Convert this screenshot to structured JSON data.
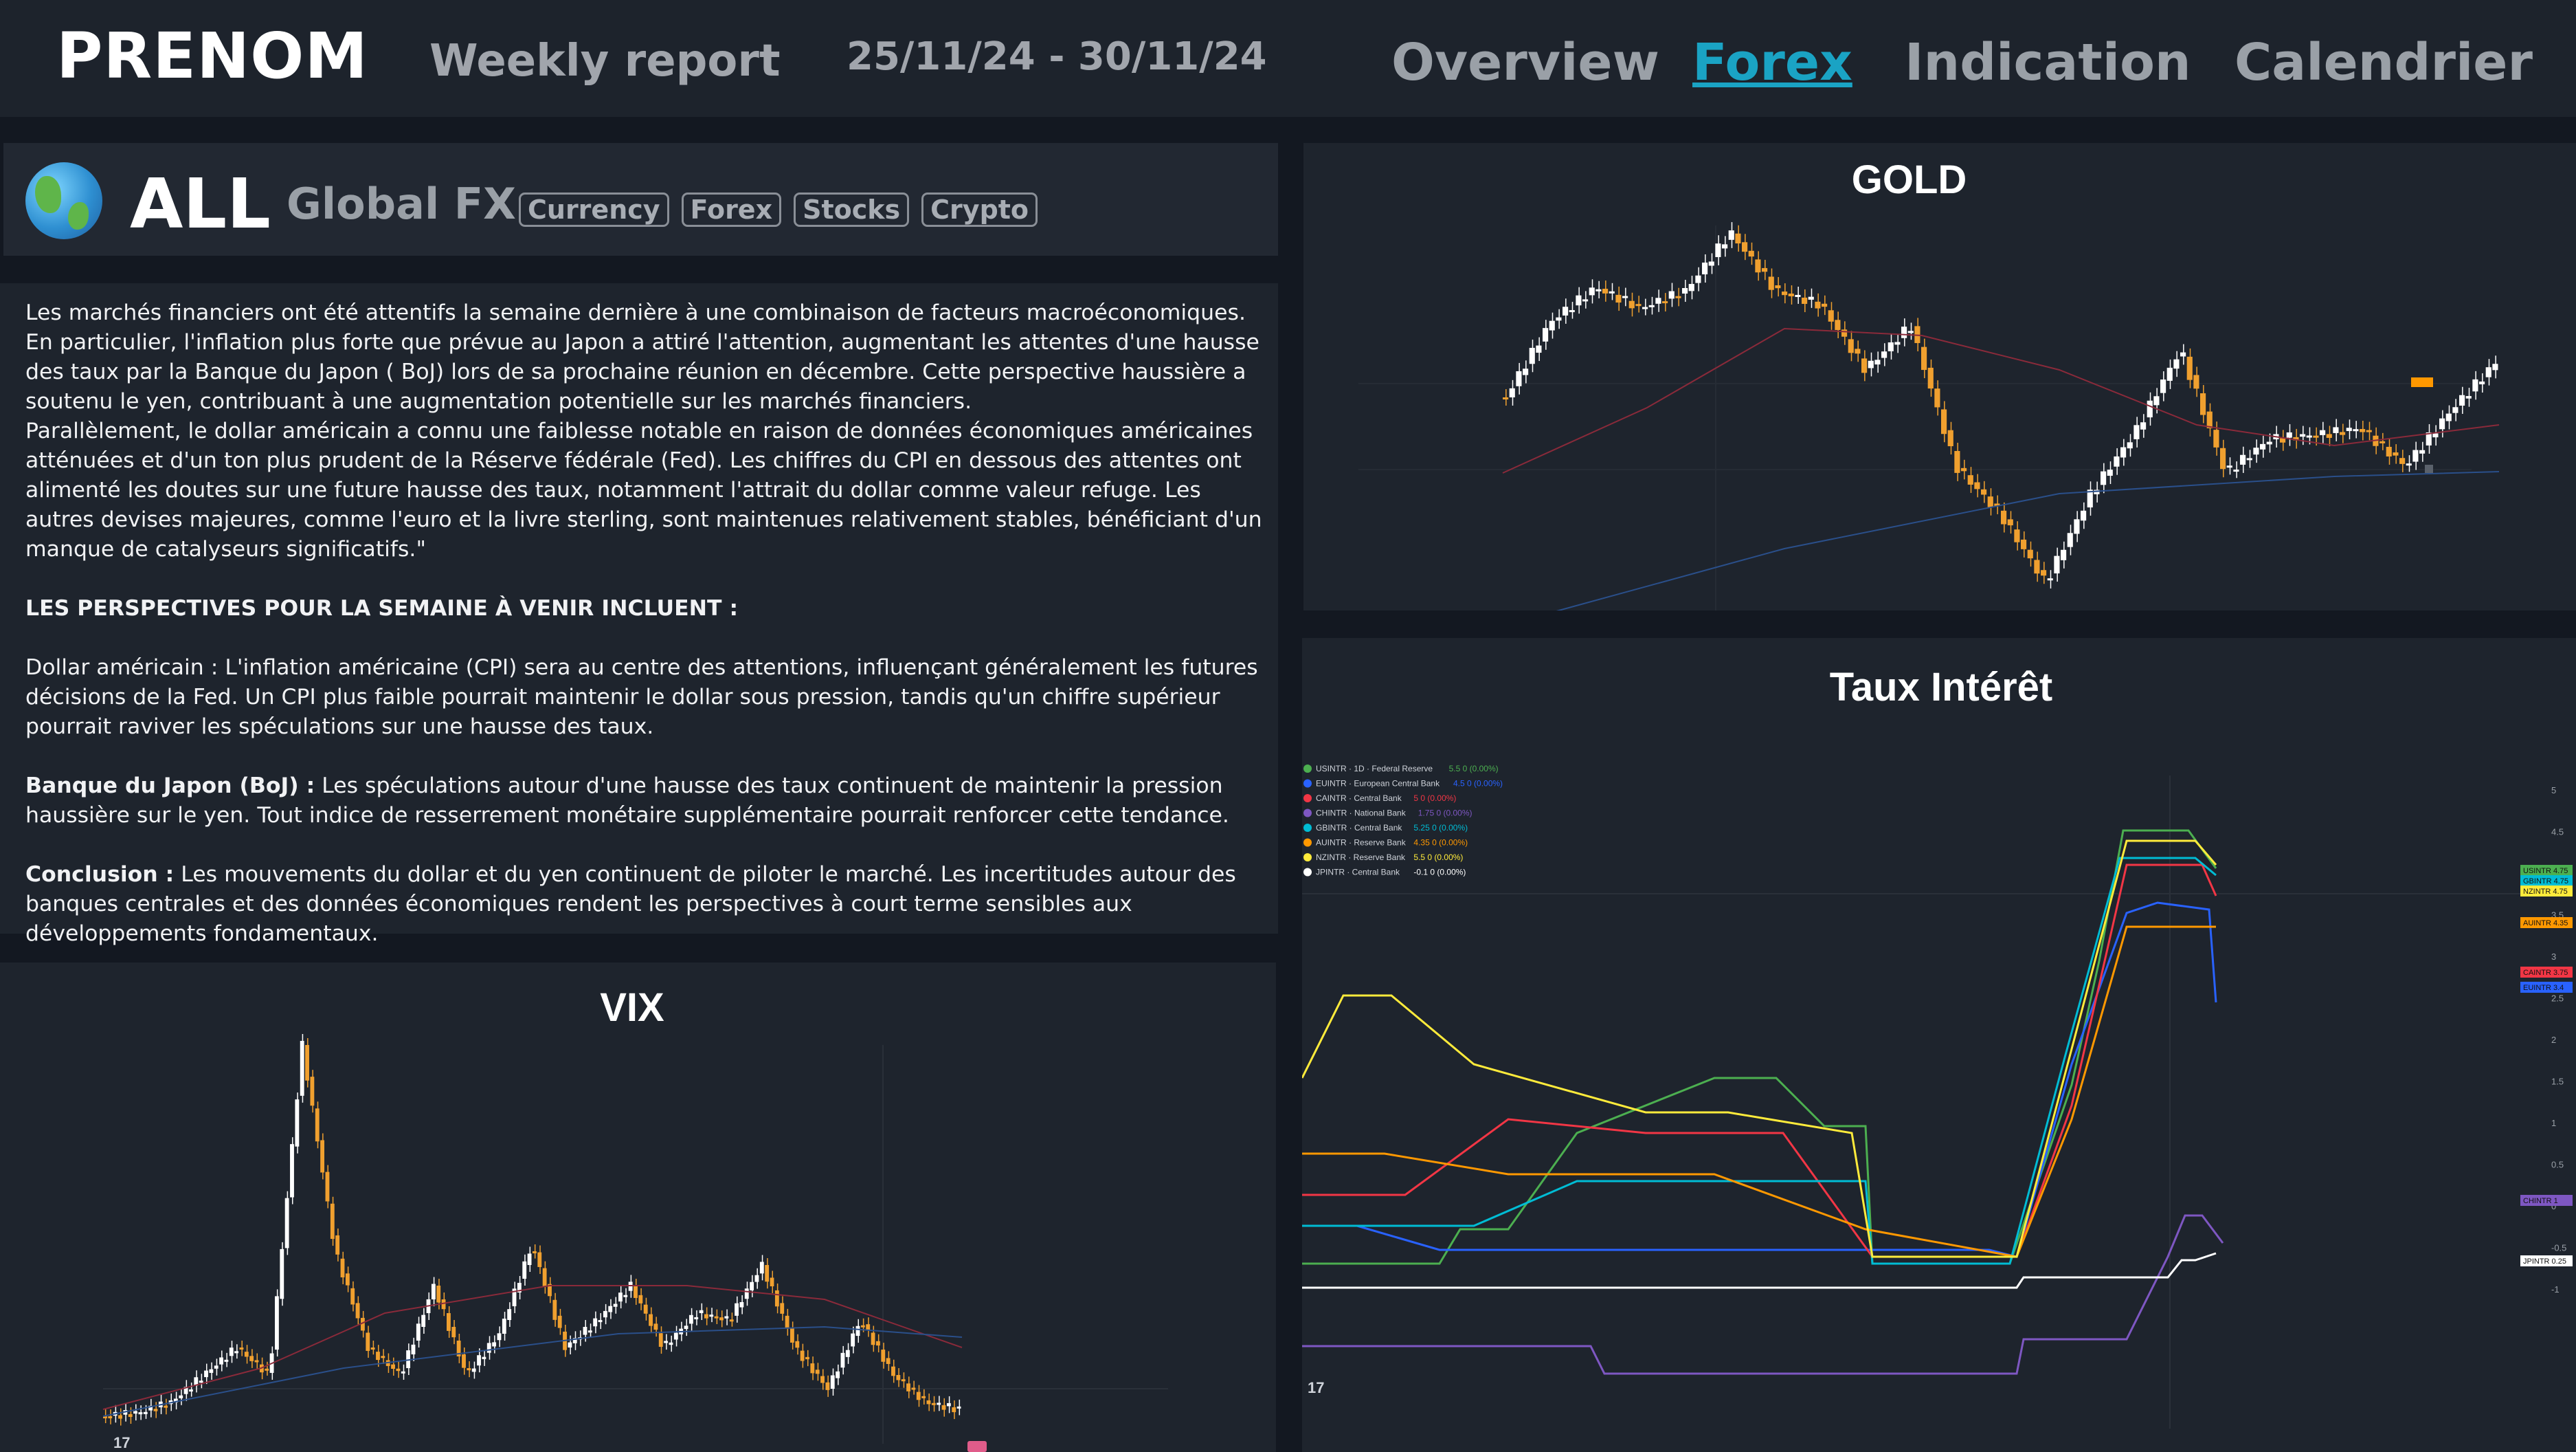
{
  "header": {
    "brand": "PRENOM",
    "subtitle": "Weekly report",
    "date_range": "25/11/24 - 30/11/24",
    "nav": [
      "Overview",
      "Forex",
      "Indication",
      "Calendrier"
    ],
    "active_nav": "Forex"
  },
  "asset": {
    "icon": "globe-icon",
    "name": "ALL",
    "category": "Global FX",
    "tags": [
      "Currency",
      "Forex",
      "Stocks",
      "Crypto"
    ]
  },
  "report": {
    "p1": "Les marchés financiers ont été attentifs la semaine dernière à une combinaison de facteurs macroéconomiques. En particulier, l'inflation plus forte que prévue au Japon a attiré l'attention, augmentant les attentes d'une hausse des taux par la Banque du Japon ( BoJ) lors de sa prochaine réunion en décembre. Cette perspective haussière a soutenu le yen, contribuant à une augmentation potentielle sur les marchés financiers.",
    "p2": "Parallèlement, le dollar américain a connu une faiblesse notable en raison de données économiques américaines atténuées et d'un ton plus prudent de la Réserve fédérale (Fed). Les chiffres du CPI en dessous des attentes ont alimenté les doutes sur une future hausse des taux, notamment l'attrait du dollar comme valeur refuge. Les autres devises majeures, comme l'euro et la livre sterling, sont maintenues relativement stables, bénéficiant d'un manque de catalyseurs significatifs.\"",
    "outlook_heading": "LES PERSPECTIVES POUR LA SEMAINE À VENIR INCLUENT :",
    "usd": "Dollar américain : L'inflation américaine (CPI) sera au centre des attentions, influençant généralement les futures décisions de la Fed. Un CPI plus faible pourrait maintenir le dollar sous pression, tandis qu'un chiffre supérieur pourrait raviver les spéculations sur une hausse des taux.",
    "boj_label": "Banque du Japon (BoJ) :",
    "boj_text": " Les spéculations autour d'une hausse des taux continuent de maintenir la pression haussière sur le yen. Tout indice de resserrement monétaire supplémentaire pourrait renforcer cette tendance.",
    "conclusion_label": "Conclusion :",
    "conclusion_text": " Les mouvements du dollar et du yen continuent de piloter le marché. Les incertitudes autour des banques centrales et des données économiques rendent les perspectives à court terme sensibles aux développements fondamentaux."
  },
  "charts": {
    "gold_title": "GOLD",
    "vix_title": "VIX",
    "rates_title": "Taux Intérêt"
  },
  "rates_legend": [
    {
      "label": "USINTR · 1D · Federal Reserve",
      "value": "5.5  0 (0.00%)",
      "color": "#4caf50"
    },
    {
      "label": "EUINTR · European Central Bank",
      "value": "4.5  0 (0.00%)",
      "color": "#2962ff"
    },
    {
      "label": "CAINTR · Central Bank",
      "value": "5  0 (0.00%)",
      "color": "#f23645"
    },
    {
      "label": "CHINTR · National Bank",
      "value": "1.75  0 (0.00%)",
      "color": "#7e57c2"
    },
    {
      "label": "GBINTR · Central Bank",
      "value": "5.25  0 (0.00%)",
      "color": "#00bcd4"
    },
    {
      "label": "AUINTR · Reserve Bank",
      "value": "4.35  0 (0.00%)",
      "color": "#ff9800"
    },
    {
      "label": "NZINTR · Reserve Bank",
      "value": "5.5  0 (0.00%)",
      "color": "#ffeb3b"
    },
    {
      "label": "JPINTR · Central Bank",
      "value": "-0.1  0 (0.00%)",
      "color": "#ffffff"
    }
  ],
  "rates_axis": [
    "5",
    "4.5",
    "4",
    "3.5",
    "3",
    "2.5",
    "2",
    "1.5",
    "1",
    "0.5",
    "0",
    "-0.5",
    "-1"
  ],
  "rates_badges": [
    {
      "label": "USINTR  4.75",
      "color": "#4caf50"
    },
    {
      "label": "GBINTR  4.75",
      "color": "#00bcd4"
    },
    {
      "label": "NZINTR  4.75",
      "color": "#ffeb3b"
    },
    {
      "label": "AUINTR  4.35",
      "color": "#ff9800"
    },
    {
      "label": "CAINTR  3.75",
      "color": "#f23645"
    },
    {
      "label": "EUINTR  3.4",
      "color": "#2962ff"
    },
    {
      "label": "CHINTR  1",
      "color": "#7e57c2"
    },
    {
      "label": "JPINTR  0.25",
      "color": "#ffffff"
    }
  ]
}
